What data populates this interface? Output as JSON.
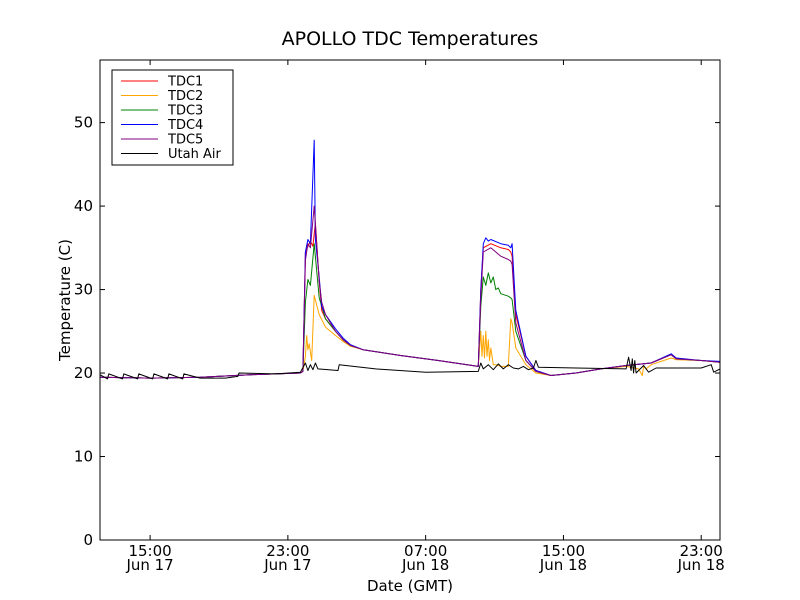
{
  "chart_data": {
    "type": "line",
    "title": "APOLLO TDC Temperatures",
    "xlabel": "Date (GMT)",
    "ylabel": "Temperature (C)",
    "xlim": [
      12,
      36.75
    ],
    "ylim": [
      0,
      57.5
    ],
    "x_unit": "hours since Jun 17 00:00 GMT",
    "grid": false,
    "legend_position": "top-left",
    "x_ticks": [
      {
        "value": 14,
        "label1": "15:00",
        "label2": "Jun 17"
      },
      {
        "value": 19.5,
        "label1": "23:00",
        "label2": "Jun 17"
      },
      {
        "value": 25,
        "label1": "07:00",
        "label2": "Jun 18"
      },
      {
        "value": 30.5,
        "label1": "15:00",
        "label2": "Jun 18"
      },
      {
        "value": 36,
        "label1": "23:00",
        "label2": "Jun 18"
      }
    ],
    "y_ticks": [
      0,
      10,
      20,
      30,
      40,
      50
    ],
    "series": [
      {
        "name": "TDC1",
        "color": "#ff0000",
        "x": [
          12,
          14,
          16,
          18,
          20.0,
          20.1,
          20.2,
          20.4,
          20.5,
          20.6,
          20.75,
          20.85,
          21,
          21.4,
          21.7,
          22,
          22.5,
          24,
          25.5,
          27.1,
          27.2,
          27.3,
          27.6,
          28,
          28.3,
          28.4,
          28.45,
          28.6,
          29,
          29.4,
          30,
          31,
          32,
          33,
          34,
          34.8,
          35,
          36,
          36.75
        ],
        "y": [
          19.5,
          19.4,
          19.5,
          19.8,
          20.0,
          20.2,
          34.5,
          35.8,
          35.2,
          38.0,
          31.0,
          27.5,
          26.5,
          25.0,
          24.0,
          23.3,
          22.8,
          22.1,
          21.5,
          20.8,
          30.0,
          35.0,
          35.5,
          35.0,
          34.8,
          34.5,
          34.0,
          27.0,
          22.0,
          20.3,
          19.7,
          20.0,
          20.5,
          20.9,
          21.2,
          22.2,
          21.7,
          21.5,
          21.3
        ]
      },
      {
        "name": "TDC2",
        "color": "#ffa500",
        "x": [
          12,
          14,
          16,
          18,
          20.0,
          20.1,
          20.2,
          20.25,
          20.3,
          20.35,
          20.45,
          20.55,
          20.75,
          21,
          21.4,
          21.7,
          22,
          22.5,
          24,
          25.5,
          27.1,
          27.2,
          27.25,
          27.3,
          27.35,
          27.4,
          27.45,
          27.5,
          27.55,
          27.6,
          27.7,
          27.8,
          28,
          28.3,
          28.4,
          28.45,
          28.6,
          29,
          29.4,
          30,
          31,
          32,
          33,
          33.5,
          33.65,
          33.7,
          33.8,
          34,
          34.8,
          35,
          36,
          36.75
        ],
        "y": [
          19.5,
          19.4,
          19.5,
          19.8,
          20.0,
          20.2,
          22.0,
          24.5,
          22.8,
          23.5,
          21.5,
          29.3,
          27.0,
          25.5,
          24.5,
          23.8,
          23.2,
          22.8,
          22.1,
          21.5,
          20.8,
          25.0,
          22.0,
          24.5,
          21.8,
          25.0,
          22.0,
          24.0,
          21.5,
          23.0,
          21.0,
          21.0,
          20.8,
          20.8,
          26.5,
          26.0,
          23.0,
          21.0,
          20.0,
          19.7,
          20.0,
          20.5,
          20.8,
          20.5,
          19.7,
          20.8,
          20.5,
          21.0,
          21.8,
          21.6,
          21.5,
          21.3
        ]
      },
      {
        "name": "TDC3",
        "color": "#008000",
        "x": [
          12,
          14,
          16,
          18,
          20.0,
          20.1,
          20.2,
          20.3,
          20.4,
          20.55,
          20.75,
          21,
          21.4,
          21.7,
          22,
          22.5,
          24,
          25.5,
          27.1,
          27.2,
          27.3,
          27.4,
          27.5,
          27.6,
          27.7,
          27.8,
          27.9,
          28,
          28.3,
          28.4,
          28.45,
          28.6,
          29,
          29.4,
          30,
          31,
          32,
          33,
          34,
          34.8,
          35,
          36,
          36.75
        ],
        "y": [
          19.5,
          19.4,
          19.5,
          19.8,
          20.0,
          20.2,
          28.5,
          31.2,
          30.5,
          35.5,
          29.0,
          26.5,
          25.0,
          24.0,
          23.3,
          22.8,
          22.1,
          21.5,
          20.8,
          28.0,
          31.5,
          30.5,
          32.0,
          30.8,
          31.5,
          30.0,
          30.2,
          29.5,
          29.2,
          29.0,
          28.8,
          25.0,
          21.5,
          20.2,
          19.7,
          20.0,
          20.5,
          20.9,
          21.2,
          22.2,
          21.7,
          21.5,
          21.3
        ]
      },
      {
        "name": "TDC4",
        "color": "#0000ff",
        "x": [
          12,
          14,
          16,
          18,
          20.0,
          20.1,
          20.2,
          20.3,
          20.4,
          20.55,
          20.6,
          20.75,
          20.85,
          21,
          21.4,
          21.7,
          22,
          22.5,
          24,
          25.5,
          27.1,
          27.2,
          27.3,
          27.4,
          27.5,
          27.6,
          28,
          28.3,
          28.4,
          28.45,
          28.6,
          29,
          29.4,
          30,
          31,
          32,
          33,
          34,
          34.8,
          35,
          36,
          36.75
        ],
        "y": [
          19.5,
          19.4,
          19.5,
          19.8,
          20.0,
          20.2,
          34.5,
          36.0,
          35.5,
          47.9,
          36.0,
          31.5,
          28.0,
          27.0,
          25.3,
          24.2,
          23.4,
          22.8,
          22.1,
          21.5,
          20.8,
          30.0,
          35.5,
          36.2,
          35.8,
          36.0,
          35.5,
          35.3,
          35.0,
          35.5,
          27.5,
          22.0,
          20.3,
          19.7,
          20.0,
          20.5,
          20.9,
          21.2,
          22.3,
          21.8,
          21.5,
          21.4
        ]
      },
      {
        "name": "TDC5",
        "color": "#800080",
        "x": [
          12,
          14,
          16,
          18,
          20.0,
          20.1,
          20.2,
          20.3,
          20.4,
          20.55,
          20.75,
          20.85,
          21,
          21.4,
          21.7,
          22,
          22.5,
          24,
          25.5,
          27.1,
          27.2,
          27.3,
          27.6,
          28,
          28.3,
          28.4,
          28.45,
          28.6,
          29,
          29.4,
          30,
          31,
          32,
          33,
          34,
          34.8,
          35,
          36,
          36.75
        ],
        "y": [
          19.5,
          19.4,
          19.5,
          19.8,
          20.0,
          20.2,
          33.5,
          35.5,
          35.0,
          40.0,
          31.0,
          28.5,
          27.0,
          25.0,
          24.0,
          23.3,
          22.8,
          22.1,
          21.5,
          20.8,
          29.0,
          34.5,
          35.0,
          34.0,
          33.6,
          33.4,
          33.0,
          26.0,
          21.5,
          20.2,
          19.7,
          20.0,
          20.5,
          20.9,
          21.2,
          22.2,
          21.7,
          21.5,
          21.3
        ]
      },
      {
        "name": "Utah Air",
        "color": "#000000",
        "x": [
          12,
          12.3,
          12.35,
          12.9,
          12.95,
          13.5,
          13.55,
          14.1,
          14.15,
          14.7,
          14.75,
          15.3,
          15.35,
          16.0,
          17.0,
          17.5,
          17.55,
          19,
          20.0,
          20.2,
          20.3,
          20.4,
          20.5,
          20.6,
          20.7,
          21.5,
          21.55,
          23,
          25,
          27.1,
          27.2,
          27.3,
          27.5,
          27.7,
          27.9,
          28.1,
          28.3,
          28.5,
          28.7,
          28.9,
          29.1,
          29.3,
          29.4,
          29.5,
          31,
          33,
          33.1,
          33.2,
          33.25,
          33.3,
          33.35,
          33.4,
          33.5,
          33.7,
          33.9,
          34.2,
          36,
          36.4,
          36.5,
          36.75
        ],
        "y": [
          19.8,
          19.3,
          19.9,
          19.3,
          19.9,
          19.3,
          19.9,
          19.3,
          19.9,
          19.3,
          19.9,
          19.3,
          19.9,
          19.4,
          19.4,
          19.6,
          20.0,
          19.9,
          20.1,
          21.2,
          20.3,
          21.0,
          20.4,
          21.2,
          20.5,
          20.3,
          21.0,
          20.5,
          20.1,
          20.2,
          21.2,
          20.5,
          21.0,
          20.4,
          21.1,
          20.5,
          21.0,
          20.6,
          20.5,
          20.8,
          20.4,
          20.6,
          21.5,
          20.7,
          20.6,
          20.5,
          21.9,
          20.3,
          21.7,
          20.0,
          21.5,
          20.0,
          20.3,
          20.9,
          20.1,
          20.6,
          20.6,
          21.0,
          20.1,
          20.5
        ]
      }
    ]
  }
}
